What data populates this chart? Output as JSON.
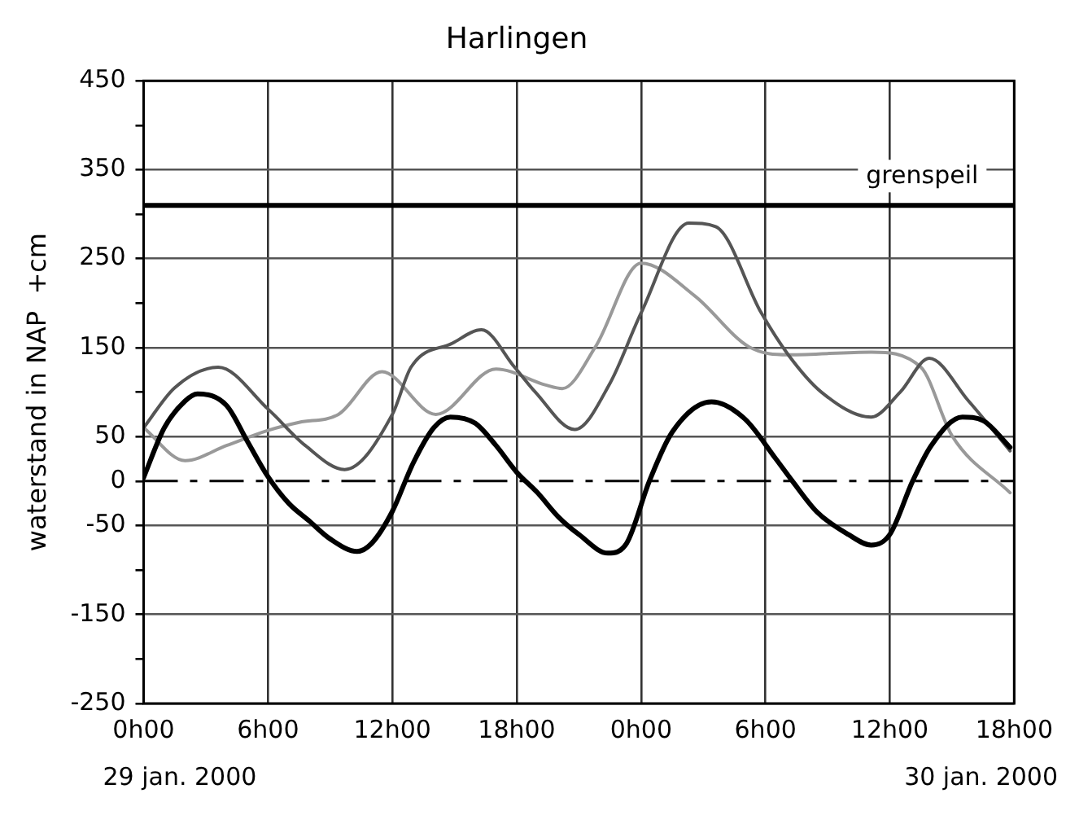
{
  "chart_data": {
    "type": "line",
    "title": "Harlingen",
    "ylabel": "waterstand in NAP  +cm",
    "xlim": [
      "2000-01-29T00:00",
      "2000-01-30T18:00"
    ],
    "xticks": [
      {
        "value": "2000-01-29T00:00",
        "label": "0h00"
      },
      {
        "value": "2000-01-29T06:00",
        "label": "6h00"
      },
      {
        "value": "2000-01-29T12:00",
        "label": "12h00"
      },
      {
        "value": "2000-01-29T18:00",
        "label": "18h00"
      },
      {
        "value": "2000-01-30T00:00",
        "label": "0h00"
      },
      {
        "value": "2000-01-30T06:00",
        "label": "6h00"
      },
      {
        "value": "2000-01-30T12:00",
        "label": "12h00"
      },
      {
        "value": "2000-01-30T18:00",
        "label": "18h00"
      }
    ],
    "ylim": [
      -250,
      450
    ],
    "yticks": [
      -250,
      {
        "value": -200,
        "label": null
      },
      -150,
      {
        "value": -100,
        "label": null
      },
      -50,
      0,
      50,
      {
        "value": 100,
        "label": null
      },
      150,
      {
        "value": 200,
        "label": null
      },
      250,
      {
        "value": 300,
        "label": null
      },
      350,
      {
        "value": 400,
        "label": null
      },
      450
    ],
    "grid": true,
    "legend": false,
    "marker": "none",
    "line_style": "solid",
    "ref_lines": [
      {
        "axis": "y",
        "value": 310,
        "label": "grenspeil",
        "color": "#000000"
      },
      {
        "axis": "y",
        "value": 0,
        "label": null,
        "color": "#000000",
        "line_style": "dashed"
      }
    ],
    "annotations": [
      "29 jan. 2000",
      "30 jan. 2000"
    ],
    "series": [
      {
        "color": "#000000",
        "x": [
          "2000-01-29T00:00",
          "2000-01-29T01:00",
          "2000-01-29T02:00",
          "2000-01-29T02:36",
          "2000-01-29T04:00",
          "2000-01-29T05:00",
          "2000-01-29T06:00",
          "2000-01-29T07:00",
          "2000-01-29T08:00",
          "2000-01-29T09:00",
          "2000-01-29T10:18",
          "2000-01-29T11:00",
          "2000-01-29T12:00",
          "2000-01-29T13:00",
          "2000-01-29T14:00",
          "2000-01-29T14:48",
          "2000-01-29T16:00",
          "2000-01-29T17:00",
          "2000-01-29T18:00",
          "2000-01-29T19:00",
          "2000-01-29T20:00",
          "2000-01-29T21:00",
          "2000-01-29T22:24",
          "2000-01-29T23:18",
          "2000-01-30T00:24",
          "2000-01-30T01:30",
          "2000-01-30T03:24",
          "2000-01-30T05:00",
          "2000-01-30T06:30",
          "2000-01-30T07:18",
          "2000-01-30T08:30",
          "2000-01-30T10:00",
          "2000-01-30T11:06",
          "2000-01-30T12:00",
          "2000-01-30T13:06",
          "2000-01-30T14:00",
          "2000-01-30T15:30",
          "2000-01-30T16:30",
          "2000-01-30T17:48"
        ],
        "values": [
          4,
          60,
          90,
          98,
          85,
          45,
          5,
          -25,
          -45,
          -65,
          -79,
          -70,
          -34,
          20,
          60,
          72,
          65,
          40,
          10,
          -13,
          -40,
          -60,
          -81,
          -70,
          0,
          55,
          89,
          70,
          25,
          0,
          -35,
          -60,
          -72,
          -60,
          0,
          40,
          72,
          68,
          38
        ]
      },
      {
        "color": "#555555",
        "x": [
          "2000-01-29T00:00",
          "2000-01-29T01:30",
          "2000-01-29T03:36",
          "2000-01-29T06:00",
          "2000-01-29T07:48",
          "2000-01-29T09:42",
          "2000-01-29T12:00",
          "2000-01-29T12:54",
          "2000-01-29T14:54",
          "2000-01-29T16:18",
          "2000-01-29T17:54",
          "2000-01-29T18:54",
          "2000-01-29T20:48",
          "2000-01-29T22:30",
          "2000-01-30T00:00",
          "2000-01-30T02:18",
          "2000-01-30T03:36",
          "2000-01-30T05:48",
          "2000-01-30T07:06",
          "2000-01-30T08:42",
          "2000-01-30T11:06",
          "2000-01-30T12:30",
          "2000-01-30T13:54",
          "2000-01-30T15:48",
          "2000-01-30T17:48"
        ],
        "values": [
          60,
          105,
          128,
          81,
          40,
          13,
          75,
          128,
          155,
          170,
          128,
          100,
          58,
          110,
          189,
          290,
          286,
          189,
          142,
          100,
          72,
          100,
          138,
          90,
          34
        ]
      },
      {
        "color": "#999999",
        "x": [
          "2000-01-29T00:00",
          "2000-01-29T02:00",
          "2000-01-29T04:00",
          "2000-01-29T06:00",
          "2000-01-29T07:30",
          "2000-01-29T09:24",
          "2000-01-29T11:30",
          "2000-01-29T14:06",
          "2000-01-29T17:00",
          "2000-01-29T19:24",
          "2000-01-29T20:12",
          "2000-01-29T21:48",
          "2000-01-30T00:00",
          "2000-01-30T02:36",
          "2000-01-30T05:12",
          "2000-01-30T07:06",
          "2000-01-30T11:06",
          "2000-01-30T13:30",
          "2000-01-30T15:00",
          "2000-01-30T17:48"
        ],
        "values": [
          60,
          23,
          40,
          57,
          66,
          75,
          123,
          75,
          126,
          108,
          104,
          151,
          245,
          208,
          151,
          142,
          145,
          128,
          51,
          -13
        ]
      }
    ]
  }
}
